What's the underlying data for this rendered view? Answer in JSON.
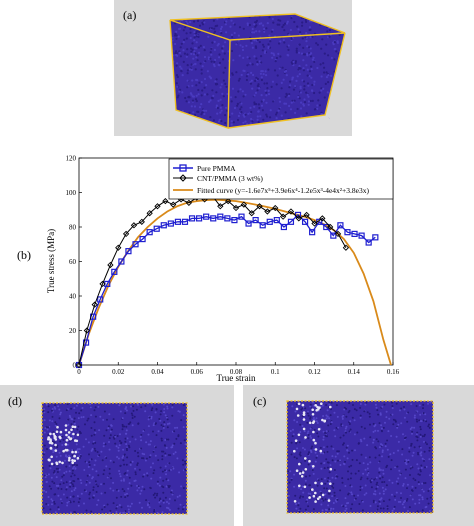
{
  "panels": {
    "a_label": "(a)",
    "b_label": "(b)",
    "c_label": "(c)",
    "d_label": "(d)"
  },
  "colors": {
    "panel_bg": "#d9d9d9",
    "atoms": "#3b2aa6",
    "box_edge": "#f0c020",
    "pure": "#1f1fd0",
    "cnt": "#000000",
    "fitted": "#d98a1a"
  },
  "chart_data": {
    "type": "line",
    "xlabel": "True strain",
    "ylabel": "True stress (MPa)",
    "xlim": [
      0,
      0.16
    ],
    "ylim": [
      0,
      120
    ],
    "xticks": [
      "0",
      "0.02",
      "0.04",
      "0.06",
      "0.08",
      "0.1",
      "0.12",
      "0.14",
      "0.16"
    ],
    "yticks": [
      "0",
      "20",
      "40",
      "60",
      "80",
      "100",
      "120"
    ],
    "legend_position": "top-right",
    "series": [
      {
        "name": "Pure PMMA",
        "marker": "square",
        "x": [
          0,
          0.0036,
          0.0072,
          0.0108,
          0.0144,
          0.018,
          0.0216,
          0.0252,
          0.0288,
          0.0324,
          0.036,
          0.0396,
          0.0432,
          0.0468,
          0.0504,
          0.054,
          0.0576,
          0.0612,
          0.0648,
          0.0684,
          0.072,
          0.0756,
          0.0792,
          0.0828,
          0.0864,
          0.09,
          0.0936,
          0.0972,
          0.1008,
          0.1044,
          0.108,
          0.1116,
          0.1152,
          0.1188,
          0.1224,
          0.126,
          0.1296,
          0.1332,
          0.1368,
          0.1404,
          0.144,
          0.1476,
          0.151
        ],
        "values": [
          0,
          13,
          28,
          38,
          47,
          54,
          60,
          66,
          70,
          73,
          77,
          79,
          81,
          82,
          83,
          83,
          85,
          85,
          86,
          85,
          86,
          85,
          84,
          86,
          82,
          84,
          81,
          83,
          84,
          80,
          83,
          87,
          83,
          77,
          83,
          80,
          75,
          81,
          77,
          76,
          75,
          71,
          74
        ]
      },
      {
        "name": "CNT/PMMA (3 wt%)",
        "marker": "diamond",
        "x": [
          0,
          0.004,
          0.008,
          0.012,
          0.016,
          0.02,
          0.024,
          0.028,
          0.032,
          0.036,
          0.04,
          0.044,
          0.048,
          0.052,
          0.056,
          0.06,
          0.064,
          0.068,
          0.072,
          0.076,
          0.08,
          0.084,
          0.088,
          0.092,
          0.096,
          0.1,
          0.104,
          0.108,
          0.112,
          0.116,
          0.12,
          0.124,
          0.128,
          0.132,
          0.136
        ],
        "values": [
          0,
          20,
          35,
          47,
          58,
          68,
          76,
          81,
          83,
          88,
          92,
          95,
          93,
          96,
          94,
          97,
          96,
          98,
          92,
          95,
          91,
          93,
          88,
          92,
          89,
          91,
          86,
          89,
          85,
          87,
          82,
          85,
          80,
          76,
          68
        ]
      },
      {
        "name": "Fitted curve (y=-1.6e7x⁵+3.9e6x⁴-1.2e5x³-4e4x²+3.8e3x)",
        "marker": "none",
        "x": [
          0,
          0.005,
          0.01,
          0.015,
          0.02,
          0.025,
          0.03,
          0.035,
          0.04,
          0.045,
          0.05,
          0.055,
          0.06,
          0.065,
          0.07,
          0.075,
          0.08,
          0.085,
          0.09,
          0.095,
          0.1,
          0.105,
          0.11,
          0.115,
          0.12,
          0.125,
          0.13,
          0.135,
          0.14,
          0.145,
          0.15,
          0.155,
          0.159
        ],
        "values": [
          0,
          18,
          33,
          46,
          57,
          66,
          74,
          80,
          85,
          89,
          92,
          94,
          95,
          95.6,
          95.8,
          95.5,
          95,
          94,
          93,
          91.8,
          90.5,
          89,
          87.5,
          86,
          84,
          81.5,
          78,
          73,
          65,
          53,
          37,
          15,
          0
        ]
      }
    ]
  }
}
